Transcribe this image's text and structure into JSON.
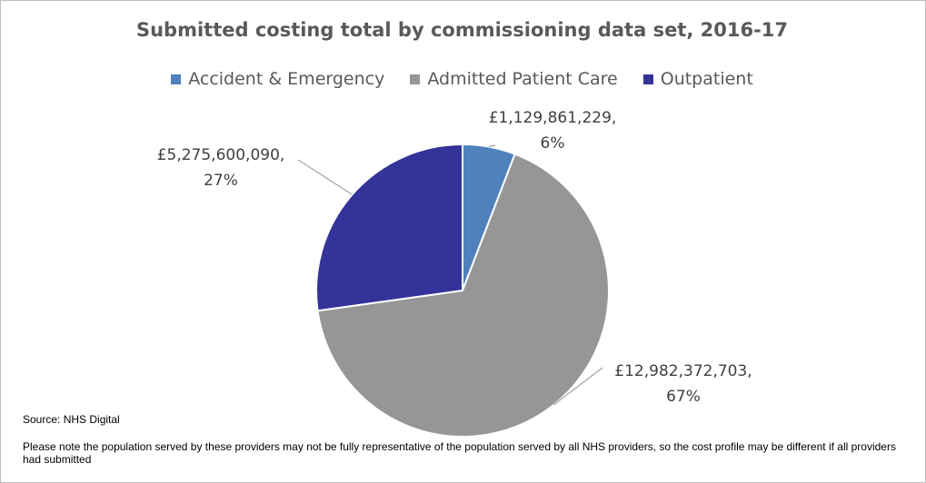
{
  "chart_data": {
    "type": "pie",
    "title": "Submitted costing total by commissioning data set, 2016-17",
    "legend_placement": "top",
    "categories": [
      "Accident & Emergency",
      "Admitted Patient Care",
      "Outpatient"
    ],
    "values": [
      1129861229,
      12982372703,
      5275600090
    ],
    "colors": [
      "#4f81bd",
      "#969696",
      "#333399"
    ],
    "data_labels": [
      {
        "value": "£1,129,861,229,",
        "percent": "6%"
      },
      {
        "value": "£12,982,372,703,",
        "percent": "67%"
      },
      {
        "value": "£5,275,600,090,",
        "percent": "27%"
      }
    ]
  },
  "footer": {
    "source": "Source: NHS Digital",
    "note": "Please note the population served by these providers may not be fully representative of the population served by all NHS providers, so the cost profile may be different if all providers had submitted"
  }
}
